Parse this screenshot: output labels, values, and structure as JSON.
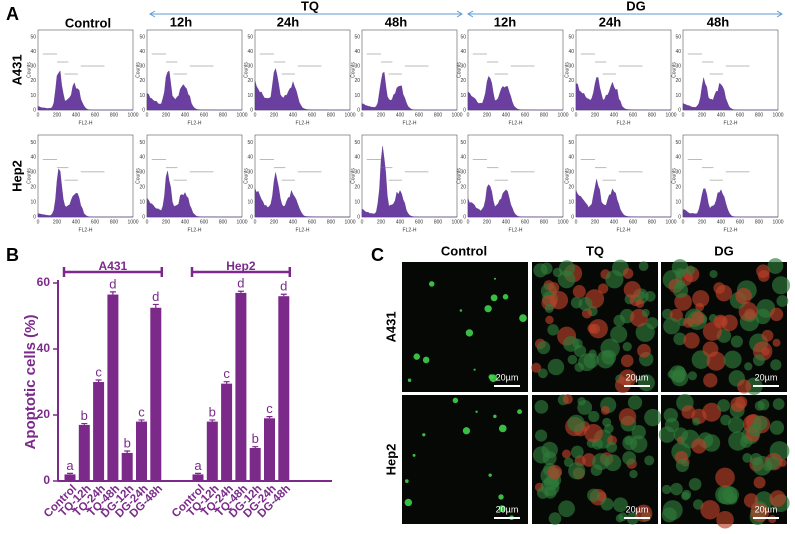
{
  "panel_labels": [
    "A",
    "B",
    "C"
  ],
  "panel_a": {
    "columns": [
      "Control",
      "12h",
      "24h",
      "48h",
      "12h",
      "24h",
      "48h"
    ],
    "groups": [
      "TQ",
      "DG"
    ],
    "rows": [
      "A431",
      "Hep2"
    ],
    "histogram_xticks": [
      "0",
      "200",
      "400",
      "600",
      "800",
      "1000"
    ],
    "histogram_yticks": [
      "0",
      "10",
      "20",
      "30",
      "40",
      "50"
    ],
    "histogram_xlabel": "FL2-H",
    "histogram_ylabel": "Counts"
  },
  "chart_data": {
    "type": "bar",
    "ylabel": "Apoptotic cells (%)",
    "color": "#7b2a8a",
    "ylim": [
      0,
      60
    ],
    "yticks": [
      0,
      20,
      40,
      60
    ],
    "groups": [
      {
        "name": "A431",
        "categories": [
          "Control",
          "TQ-12h",
          "TQ-24h",
          "TQ-48h",
          "DG-12h",
          "DG-24h",
          "DG-48h"
        ],
        "values": [
          2,
          17,
          30,
          56.5,
          8.5,
          18,
          52.5
        ],
        "errors": [
          0.3,
          0.4,
          0.6,
          0.8,
          0.6,
          0.5,
          1.0
        ],
        "letters": [
          "a",
          "b",
          "c",
          "d",
          "b",
          "c",
          "d"
        ]
      },
      {
        "name": "Hep2",
        "categories": [
          "Control",
          "TQ-12h",
          "TQ-24h",
          "TQ-48h",
          "DG-12h",
          "DG-24h",
          "DG-48h"
        ],
        "values": [
          2,
          18,
          29.5,
          57,
          10,
          19,
          56
        ],
        "errors": [
          0.3,
          0.5,
          0.6,
          0.5,
          0.4,
          0.5,
          0.6
        ],
        "letters": [
          "a",
          "b",
          "c",
          "d",
          "b",
          "c",
          "d"
        ]
      }
    ]
  },
  "panel_c": {
    "columns": [
      "Control",
      "TQ",
      "DG"
    ],
    "rows": [
      "A431",
      "Hep2"
    ],
    "scale_bar": "20µm"
  }
}
